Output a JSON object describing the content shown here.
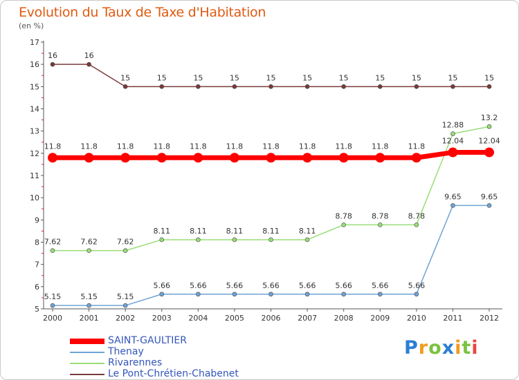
{
  "header": {
    "title": "Evolution du Taux de Taxe d'Habitation",
    "unit": "(en %)"
  },
  "logo": {
    "letters": [
      "P",
      "r",
      "o",
      "x",
      "i",
      "t",
      "i"
    ],
    "colors": [
      "#2a7fd4",
      "#f29b1d",
      "#7cc242",
      "#2a7fd4",
      "#f29b1d",
      "#7cc242",
      "#e8463c"
    ]
  },
  "chart_data": {
    "type": "line",
    "x": [
      "2000",
      "2001",
      "2002",
      "2003",
      "2004",
      "2005",
      "2006",
      "2007",
      "2008",
      "2009",
      "2010",
      "2011",
      "2012"
    ],
    "ylim": [
      5,
      17
    ],
    "yticks": [
      "5",
      "6",
      "7",
      "8",
      "9",
      "10",
      "11",
      "12",
      "13",
      "14",
      "15",
      "16",
      "17"
    ],
    "grid": false,
    "legend_position": "bottom-left",
    "series": [
      {
        "name": "SAINT-GAULTIER",
        "color": "#ff0000",
        "values": [
          11.8,
          11.8,
          11.8,
          11.8,
          11.8,
          11.8,
          11.8,
          11.8,
          11.8,
          11.8,
          11.8,
          12.04,
          12.04
        ],
        "labels": [
          "11.8",
          "11.8",
          "11.8",
          "11.8",
          "11.8",
          "11.8",
          "11.8",
          "11.8",
          "11.8",
          "11.8",
          "11.8",
          "12.04",
          "12.04"
        ]
      },
      {
        "name": "Thenay",
        "color": "#6fa3d4",
        "values": [
          5.15,
          5.15,
          5.15,
          5.66,
          5.66,
          5.66,
          5.66,
          5.66,
          5.66,
          5.66,
          5.66,
          9.65,
          9.65
        ],
        "labels": [
          "5.15",
          "5.15",
          "5.15",
          "5.66",
          "5.66",
          "5.66",
          "5.66",
          "5.66",
          "5.66",
          "5.66",
          "5.66",
          "9.65",
          "9.65"
        ]
      },
      {
        "name": "Rivarennes",
        "color": "#99dd77",
        "values": [
          7.62,
          7.62,
          7.62,
          8.11,
          8.11,
          8.11,
          8.11,
          8.11,
          8.78,
          8.78,
          8.78,
          12.88,
          13.2
        ],
        "labels": [
          "7.62",
          "7.62",
          "7.62",
          "8.11",
          "8.11",
          "8.11",
          "8.11",
          "8.11",
          "8.78",
          "8.78",
          "8.78",
          "12.88",
          "13.2"
        ]
      },
      {
        "name": "Le Pont-Chrétien-Chabenet",
        "color": "#7a3a3a",
        "values": [
          16,
          16,
          15,
          15,
          15,
          15,
          15,
          15,
          15,
          15,
          15,
          15,
          15
        ],
        "labels": [
          "16",
          "16",
          "15",
          "15",
          "15",
          "15",
          "15",
          "15",
          "15",
          "15",
          "15",
          "15",
          "15"
        ]
      }
    ]
  }
}
